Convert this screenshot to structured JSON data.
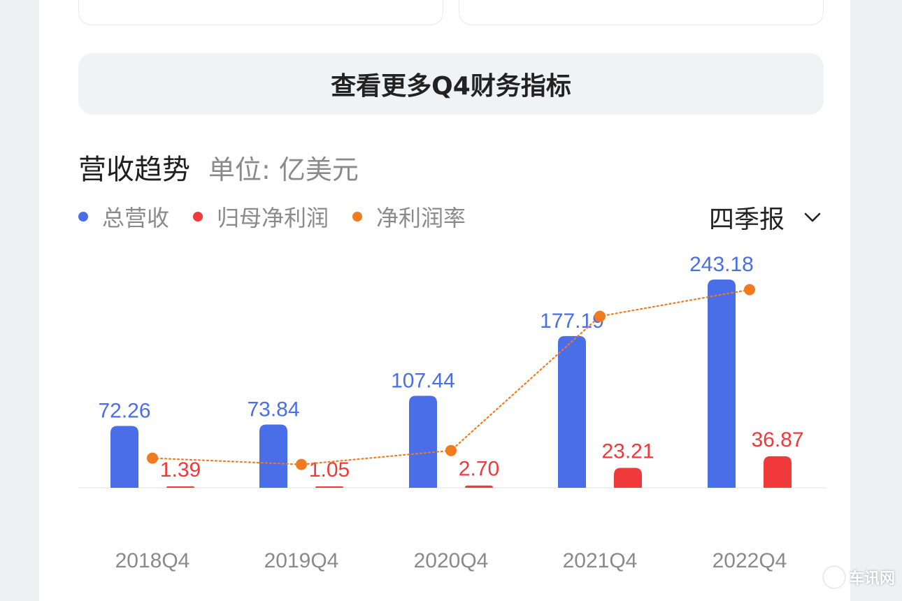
{
  "more_button": {
    "label": "查看更多Q4财务指标"
  },
  "section": {
    "title": "营收趋势",
    "unit": "单位: 亿美元"
  },
  "period_selector": {
    "label": "四季报"
  },
  "colors": {
    "revenue": "#4a6ee8",
    "net_profit": "#f0393a",
    "margin": "#f07a1e"
  },
  "chart_data": {
    "type": "bar",
    "categories": [
      "2018Q4",
      "2019Q4",
      "2020Q4",
      "2021Q4",
      "2022Q4"
    ],
    "series": [
      {
        "name": "总营收",
        "values": [
          72.26,
          73.84,
          107.44,
          177.19,
          243.18
        ],
        "labels": [
          "72.26",
          "73.84",
          "107.44",
          "177.19",
          "243.18"
        ]
      },
      {
        "name": "归母净利润",
        "values": [
          1.39,
          1.05,
          2.7,
          23.21,
          36.87
        ],
        "labels": [
          "1.39",
          "1.05",
          "2.70",
          "23.21",
          "36.87"
        ]
      },
      {
        "name": "净利润率",
        "type": "line",
        "values": [
          1.9,
          1.4,
          2.5,
          13.1,
          15.2
        ]
      }
    ],
    "ylim": [
      0,
      250
    ],
    "grid": false,
    "legend": "top-left"
  },
  "watermark": {
    "text": "车讯网"
  }
}
